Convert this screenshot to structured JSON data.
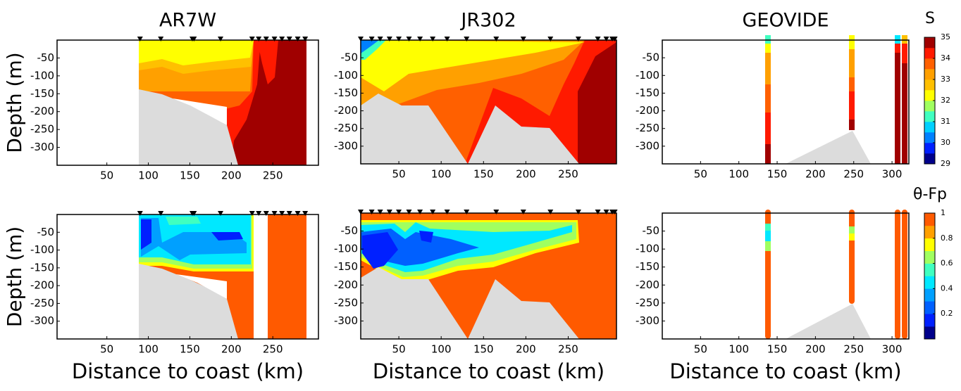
{
  "chart_data": [
    {
      "type": "contour",
      "title": "AR7W",
      "ylabel": "Depth (m)",
      "xlim": [
        -10,
        305
      ],
      "ylim": [
        -350,
        0
      ],
      "xticks": [
        50,
        100,
        150,
        200,
        250
      ],
      "yticks": [
        -50,
        -100,
        -150,
        -200,
        -250,
        -300
      ],
      "stations": [
        90,
        115,
        153,
        155,
        187,
        225,
        233,
        242,
        252,
        261,
        270,
        280,
        289
      ]
    },
    {
      "type": "contour",
      "title": "JR302",
      "xlim": [
        5,
        307
      ],
      "ylim": [
        -350,
        0
      ],
      "xticks": [
        50,
        100,
        150,
        200,
        250
      ],
      "yticks": [
        -50,
        -100,
        -150,
        -200,
        -250,
        -300
      ],
      "stations": [
        5,
        18,
        28,
        39,
        50,
        62,
        75,
        90,
        107,
        130,
        165,
        197,
        229,
        262,
        285,
        295,
        302,
        305
      ]
    },
    {
      "type": "contour",
      "title": "GEOVIDE",
      "xlim": [
        0,
        322
      ],
      "ylim": [
        -350,
        0
      ],
      "xticks": [
        50,
        100,
        150,
        200,
        250,
        300
      ],
      "yticks": [
        -50,
        -100,
        -150,
        -200,
        -250,
        -300
      ],
      "colorbar": {
        "label": "S",
        "lim": [
          29,
          35
        ],
        "ticks": [
          29,
          30,
          31,
          32,
          33,
          34,
          35
        ],
        "colors": [
          "#00008b",
          "#0020ff",
          "#0080ff",
          "#00d0ff",
          "#40ffc0",
          "#a0ff60",
          "#ffff00",
          "#ffc000",
          "#ffa000",
          "#ff6000",
          "#ff1a00",
          "#a00000"
        ]
      }
    },
    {
      "type": "contour",
      "ylabel": "Depth (m)",
      "xlabel": "Distance to coast (km)",
      "xlim": [
        -10,
        305
      ],
      "ylim": [
        -350,
        0
      ],
      "xticks": [
        50,
        100,
        150,
        200,
        250
      ],
      "yticks": [
        -50,
        -100,
        -150,
        -200,
        -250,
        -300
      ],
      "stations": [
        90,
        115,
        153,
        155,
        187,
        225,
        233,
        242,
        252,
        261,
        270,
        280,
        289
      ]
    },
    {
      "type": "contour",
      "xlabel": "Distance to coast (km)",
      "xlim": [
        5,
        307
      ],
      "ylim": [
        -350,
        0
      ],
      "xticks": [
        50,
        100,
        150,
        200,
        250
      ],
      "yticks": [
        -50,
        -100,
        -150,
        -200,
        -250,
        -300
      ],
      "stations": [
        5,
        18,
        28,
        39,
        50,
        62,
        75,
        90,
        107,
        130,
        165,
        197,
        229,
        262,
        285,
        295,
        302,
        305
      ]
    },
    {
      "type": "contour",
      "xlabel": "Distance to coast (km)",
      "xlim": [
        0,
        322
      ],
      "ylim": [
        -350,
        0
      ],
      "xticks": [
        50,
        100,
        150,
        200,
        250,
        300
      ],
      "yticks": [
        -50,
        -100,
        -150,
        -200,
        -250,
        -300
      ],
      "colorbar": {
        "label": "θ-Fp",
        "lim": [
          0,
          1
        ],
        "ticks": [
          0.2,
          0.4,
          0.6,
          0.8,
          1
        ],
        "colors": [
          "#00008b",
          "#0020ff",
          "#0060ff",
          "#00a0ff",
          "#00e8ff",
          "#40ffc0",
          "#a0ff60",
          "#ffff00",
          "#ffa000",
          "#ff5a00"
        ]
      }
    }
  ]
}
